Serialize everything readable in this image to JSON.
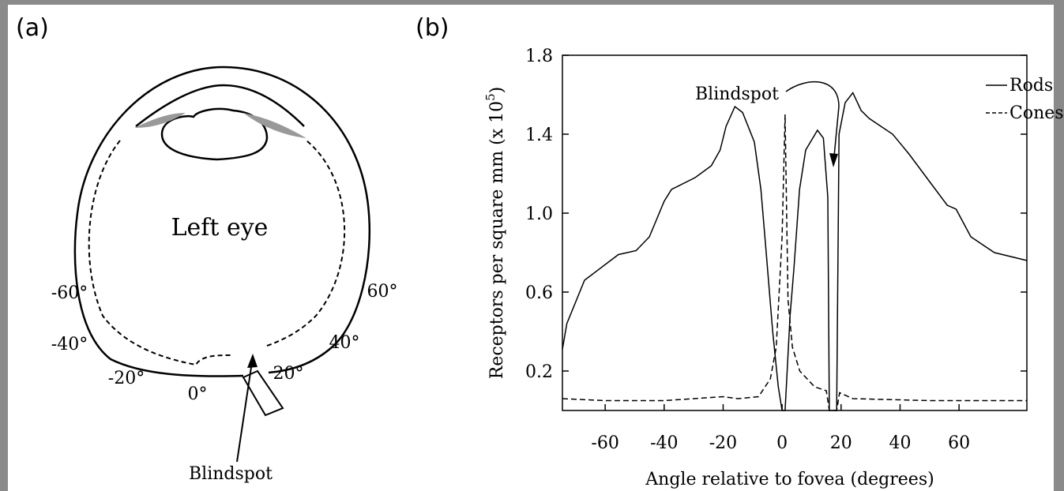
{
  "diagram": {
    "panel_label": "(a)",
    "title": "Left eye",
    "angle_labels": [
      "-60°",
      "-40°",
      "-20°",
      "0°",
      "20°",
      "40°",
      "60°"
    ],
    "annotation": "Blindspot"
  },
  "chart_data": {
    "type": "line",
    "panel_label": "(b)",
    "xlabel": "Angle relative to fovea (degrees)",
    "ylabel": "Receptors per square mm (x 10",
    "ylabel_superscript": "5",
    "ylabel_end": ")",
    "annotation": "Blindspot",
    "xlim": [
      -74.5,
      83
    ],
    "ylim": [
      0,
      1.8
    ],
    "xticks": [
      -60,
      -40,
      -20,
      0,
      20,
      40,
      60
    ],
    "yticks": [
      0.2,
      0.6,
      {
        "value": 1.0,
        "label": "1.0"
      },
      1.4,
      1.8
    ],
    "legend": "upper right",
    "series": [
      {
        "name": "Rods",
        "color": "#000000",
        "dash": "solid",
        "x": [
          -74.5,
          -73,
          -67,
          -55.5,
          -49.5,
          -45,
          -40,
          -37.5,
          -29.5,
          -24,
          -21,
          -19,
          -16,
          -13.4,
          -9.4,
          -7.2,
          -5.4,
          -3.2,
          -1.3,
          0,
          1,
          2.7,
          4,
          5.9,
          8,
          12,
          14,
          15.5,
          16,
          18.5,
          19.3,
          21.4,
          24,
          26.8,
          29.5,
          37.5,
          43,
          51,
          56,
          59,
          64,
          72,
          83
        ],
        "values": [
          0.31,
          0.44,
          0.66,
          0.79,
          0.81,
          0.88,
          1.06,
          1.12,
          1.18,
          1.24,
          1.32,
          1.44,
          1.54,
          1.51,
          1.36,
          1.12,
          0.8,
          0.4,
          0.12,
          0,
          0,
          0.48,
          0.72,
          1.12,
          1.32,
          1.42,
          1.38,
          1.08,
          0,
          0,
          1.4,
          1.56,
          1.61,
          1.52,
          1.48,
          1.4,
          1.3,
          1.14,
          1.04,
          1.02,
          0.88,
          0.8,
          0.76
        ]
      },
      {
        "name": "Cones",
        "color": "#000000",
        "dash": "dashed",
        "x": [
          -74.5,
          -60,
          -40,
          -20,
          -15,
          -8,
          -4,
          -2,
          0,
          1,
          2,
          3.5,
          6,
          11,
          15,
          16,
          18.5,
          19.5,
          24,
          50,
          83
        ],
        "values": [
          0.06,
          0.05,
          0.05,
          0.07,
          0.06,
          0.07,
          0.16,
          0.32,
          0.88,
          1.5,
          0.56,
          0.32,
          0.2,
          0.12,
          0.1,
          0,
          0,
          0.09,
          0.06,
          0.05,
          0.05
        ]
      }
    ]
  }
}
